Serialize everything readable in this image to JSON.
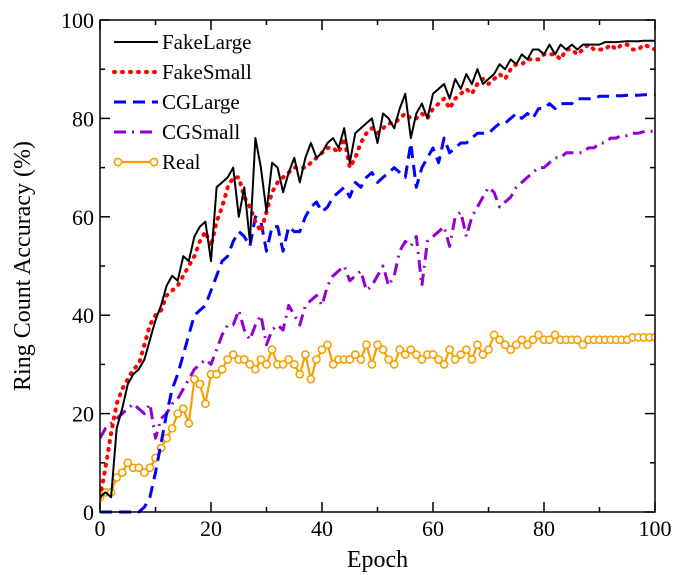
{
  "chart_data": {
    "type": "line",
    "xlabel": "Epoch",
    "ylabel": "Ring Count Accuracy (%)",
    "xlim": [
      0,
      100
    ],
    "ylim": [
      0,
      100
    ],
    "xticks": [
      0,
      20,
      40,
      60,
      80,
      100
    ],
    "yticks": [
      0,
      20,
      40,
      60,
      80,
      100
    ],
    "grid": false,
    "legend_position": "top-left",
    "series": [
      {
        "name": "FakeLarge",
        "color": "#000000",
        "style": "solid",
        "x": [
          0,
          1,
          2,
          3,
          4,
          5,
          6,
          7,
          8,
          9,
          10,
          11,
          12,
          13,
          14,
          15,
          16,
          17,
          18,
          19,
          20,
          21,
          22,
          23,
          24,
          25,
          26,
          27,
          28,
          29,
          30,
          31,
          32,
          33,
          34,
          35,
          36,
          37,
          38,
          39,
          40,
          41,
          42,
          43,
          44,
          45,
          46,
          47,
          48,
          49,
          50,
          51,
          52,
          53,
          54,
          55,
          56,
          57,
          58,
          59,
          60,
          61,
          62,
          63,
          64,
          65,
          66,
          67,
          68,
          69,
          70,
          71,
          72,
          73,
          74,
          75,
          76,
          77,
          78,
          79,
          80,
          81,
          82,
          83,
          84,
          85,
          86,
          87,
          88,
          89,
          90,
          91,
          92,
          93,
          94,
          95,
          96,
          97,
          98,
          99,
          100
        ],
        "values": [
          3,
          4,
          3,
          17,
          21,
          26,
          28,
          29,
          31,
          35,
          39,
          42,
          46,
          48,
          47,
          52,
          51,
          56,
          58,
          59,
          51,
          66,
          67,
          68,
          70,
          60,
          66,
          55,
          76,
          70,
          61,
          71,
          70,
          65,
          69,
          72,
          67,
          72,
          75,
          72,
          73,
          75,
          76,
          74,
          78,
          71,
          77,
          78,
          79,
          80,
          75,
          81,
          80,
          78,
          82,
          85,
          76,
          81,
          83,
          80,
          85,
          86,
          87,
          84,
          88,
          86,
          89,
          87,
          90,
          87,
          88,
          89,
          91,
          90,
          92,
          91,
          93,
          92,
          94,
          94,
          93,
          95,
          93,
          95,
          94,
          95,
          94,
          95,
          95,
          95,
          95,
          95.5,
          95.5,
          95.5,
          95.6,
          95.7,
          95.7,
          95.7,
          95.8,
          95.8,
          95.8
        ]
      },
      {
        "name": "FakeSmall",
        "color": "#ff0000",
        "style": "dotted",
        "x": [
          0,
          1,
          2,
          3,
          4,
          5,
          6,
          7,
          8,
          9,
          10,
          11,
          12,
          13,
          14,
          15,
          16,
          17,
          18,
          19,
          20,
          21,
          22,
          23,
          24,
          25,
          26,
          27,
          28,
          29,
          30,
          31,
          32,
          33,
          34,
          35,
          36,
          37,
          38,
          39,
          40,
          41,
          42,
          43,
          44,
          45,
          46,
          47,
          48,
          49,
          50,
          51,
          52,
          53,
          54,
          55,
          56,
          57,
          58,
          59,
          60,
          61,
          62,
          63,
          64,
          65,
          66,
          67,
          68,
          69,
          70,
          71,
          72,
          73,
          74,
          75,
          76,
          77,
          78,
          79,
          80,
          81,
          82,
          83,
          84,
          85,
          86,
          87,
          88,
          89,
          90,
          91,
          92,
          93,
          94,
          95,
          96,
          97,
          98,
          99,
          100
        ],
        "values": [
          3,
          9,
          16,
          22,
          25,
          27,
          29,
          30,
          34,
          38,
          40,
          41,
          44,
          45,
          46,
          48,
          50,
          52,
          55,
          57,
          54,
          59,
          62,
          66,
          68,
          68,
          64,
          62,
          59,
          57,
          61,
          65,
          67,
          68,
          69,
          70,
          70,
          70,
          71,
          72,
          73,
          74,
          74,
          73,
          76,
          70,
          72,
          75,
          77,
          78,
          77,
          78,
          79,
          79,
          80,
          81,
          80,
          80,
          81,
          80,
          82,
          83,
          84,
          82,
          84,
          85,
          86,
          85,
          87,
          88,
          87,
          88,
          89,
          88,
          90,
          91,
          91,
          92,
          92,
          92,
          93,
          93,
          93,
          92,
          94,
          94,
          93,
          94,
          95,
          94,
          94,
          94,
          95,
          94,
          95,
          95,
          94,
          94,
          95,
          94.5,
          94
        ]
      },
      {
        "name": "CGLarge",
        "color": "#0000ff",
        "style": "dashed",
        "x": [
          0,
          1,
          2,
          3,
          4,
          5,
          6,
          7,
          8,
          9,
          10,
          11,
          12,
          13,
          14,
          15,
          16,
          17,
          18,
          19,
          20,
          21,
          22,
          23,
          24,
          25,
          26,
          27,
          28,
          29,
          30,
          31,
          32,
          33,
          34,
          35,
          36,
          37,
          38,
          39,
          40,
          41,
          42,
          43,
          44,
          45,
          46,
          47,
          48,
          49,
          50,
          51,
          52,
          53,
          54,
          55,
          56,
          57,
          58,
          59,
          60,
          61,
          62,
          63,
          64,
          65,
          66,
          67,
          68,
          69,
          70,
          71,
          72,
          73,
          74,
          75,
          76,
          77,
          78,
          79,
          80,
          81,
          82,
          83,
          84,
          85,
          86,
          87,
          88,
          89,
          90,
          91,
          92,
          93,
          94,
          95,
          96,
          97,
          98,
          99,
          100
        ],
        "values": [
          0,
          0,
          0,
          0,
          0,
          0,
          0,
          0,
          1,
          3,
          8,
          14,
          20,
          25,
          28,
          32,
          36,
          40,
          41,
          42,
          45,
          48,
          51,
          52,
          55,
          57,
          56,
          54,
          60,
          59,
          53,
          58,
          58,
          53,
          58,
          57,
          57,
          60,
          62,
          63,
          61,
          62,
          64,
          65,
          66,
          64,
          67,
          66,
          68,
          69,
          67,
          68,
          69,
          70,
          69,
          68,
          75,
          66,
          70,
          72,
          74,
          71,
          76,
          73,
          74,
          75,
          75,
          76,
          77,
          77,
          77,
          78,
          79,
          79,
          80,
          81,
          80,
          81,
          80,
          82,
          82,
          83,
          82,
          83,
          83,
          83,
          84,
          84,
          84,
          84,
          84.5,
          84.5,
          84.5,
          84.6,
          84.6,
          84.7,
          84.7,
          84.7,
          84.8,
          84.8,
          84.8
        ]
      },
      {
        "name": "CGSmall",
        "color": "#9400d3",
        "style": "dashdot",
        "x": [
          0,
          1,
          2,
          3,
          4,
          5,
          6,
          7,
          8,
          9,
          10,
          11,
          12,
          13,
          14,
          15,
          16,
          17,
          18,
          19,
          20,
          21,
          22,
          23,
          24,
          25,
          26,
          27,
          28,
          29,
          30,
          31,
          32,
          33,
          34,
          35,
          36,
          37,
          38,
          39,
          40,
          41,
          42,
          43,
          44,
          45,
          46,
          47,
          48,
          49,
          50,
          51,
          52,
          53,
          54,
          55,
          56,
          57,
          58,
          59,
          60,
          61,
          62,
          63,
          64,
          65,
          66,
          67,
          68,
          69,
          70,
          71,
          72,
          73,
          74,
          75,
          76,
          77,
          78,
          79,
          80,
          81,
          82,
          83,
          84,
          85,
          86,
          87,
          88,
          89,
          90,
          91,
          92,
          93,
          94,
          95,
          96,
          97,
          98,
          99,
          100
        ],
        "values": [
          15,
          17,
          18,
          19,
          20,
          21,
          22,
          21,
          20,
          22,
          15,
          19,
          20,
          22,
          23,
          25,
          27,
          29,
          30,
          31,
          30,
          33,
          36,
          38,
          38,
          41,
          37,
          35,
          38,
          40,
          34,
          37,
          38,
          37,
          42,
          40,
          38,
          42,
          43,
          44,
          42,
          46,
          48,
          49,
          50,
          47,
          48,
          49,
          45,
          46,
          48,
          50,
          46,
          48,
          53,
          55,
          54,
          56,
          46,
          55,
          56,
          57,
          58,
          54,
          60,
          61,
          56,
          60,
          62,
          64,
          66,
          65,
          62,
          63,
          64,
          66,
          67,
          68,
          69,
          70,
          70,
          71,
          72,
          72,
          73,
          73,
          73,
          73,
          74,
          74,
          75,
          75,
          76,
          76,
          76.5,
          76.5,
          77,
          77,
          77.3,
          77.3,
          77.5
        ]
      },
      {
        "name": "Real",
        "color": "#f5a000",
        "style": "solid-marker",
        "x": [
          0,
          1,
          2,
          3,
          4,
          5,
          6,
          7,
          8,
          9,
          10,
          11,
          12,
          13,
          14,
          15,
          16,
          17,
          18,
          19,
          20,
          21,
          22,
          23,
          24,
          25,
          26,
          27,
          28,
          29,
          30,
          31,
          32,
          33,
          34,
          35,
          36,
          37,
          38,
          39,
          40,
          41,
          42,
          43,
          44,
          45,
          46,
          47,
          48,
          49,
          50,
          51,
          52,
          53,
          54,
          55,
          56,
          57,
          58,
          59,
          60,
          61,
          62,
          63,
          64,
          65,
          66,
          67,
          68,
          69,
          70,
          71,
          72,
          73,
          74,
          75,
          76,
          77,
          78,
          79,
          80,
          81,
          82,
          83,
          84,
          85,
          86,
          87,
          88,
          89,
          90,
          91,
          92,
          93,
          94,
          95,
          96,
          97,
          98,
          99,
          100
        ],
        "values": [
          3,
          4,
          4,
          7,
          8,
          10,
          9,
          9,
          8,
          9,
          11,
          13,
          15,
          17,
          20,
          21,
          18,
          27,
          26,
          22,
          28,
          28,
          29,
          31,
          32,
          31,
          31,
          30,
          29,
          31,
          30,
          33,
          30,
          30,
          31,
          30,
          28,
          32,
          27,
          31,
          33,
          34,
          30,
          31,
          31,
          31,
          32,
          31,
          34,
          30,
          34,
          33,
          31,
          30,
          33,
          32,
          33,
          32,
          31,
          32,
          32,
          31,
          30,
          33,
          31,
          32,
          33,
          31,
          34,
          32,
          33,
          36,
          35,
          34,
          33,
          34,
          35,
          34,
          35,
          36,
          35,
          35,
          36,
          35,
          35,
          35,
          35,
          34,
          35,
          35,
          35,
          35,
          35,
          35,
          35,
          35,
          35.5,
          35.5,
          35.5,
          35.5,
          35.5
        ]
      }
    ]
  }
}
